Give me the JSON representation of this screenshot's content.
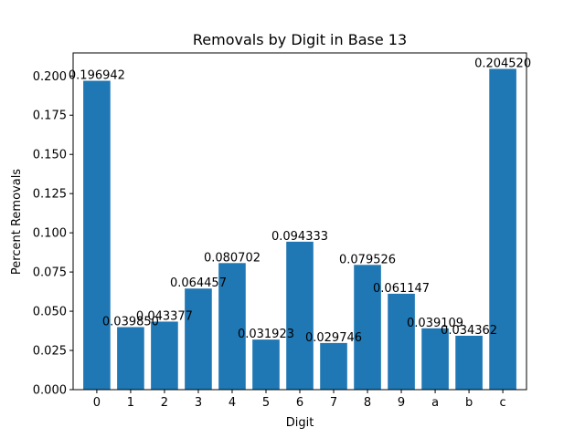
{
  "chart_data": {
    "type": "bar",
    "title": "Removals by Digit in Base 13",
    "xlabel": "Digit",
    "ylabel": "Percent Removals",
    "categories": [
      "0",
      "1",
      "2",
      "3",
      "4",
      "5",
      "6",
      "7",
      "8",
      "9",
      "a",
      "b",
      "c"
    ],
    "values": [
      0.196942,
      0.03985,
      0.043377,
      0.064457,
      0.080702,
      0.031923,
      0.094333,
      0.029746,
      0.079526,
      0.061147,
      0.039109,
      0.034362,
      0.20452
    ],
    "value_labels": [
      "0.196942",
      "0.039850",
      "0.043377",
      "0.064457",
      "0.080702",
      "0.031923",
      "0.094333",
      "0.029746",
      "0.079526",
      "0.061147",
      "0.039109",
      "0.034362",
      "0.204520"
    ],
    "ylim": [
      0,
      0.2147
    ],
    "yticks": [
      0.0,
      0.025,
      0.05,
      0.075,
      0.1,
      0.125,
      0.15,
      0.175,
      0.2
    ],
    "ytick_labels": [
      "0.000",
      "0.025",
      "0.050",
      "0.075",
      "0.100",
      "0.125",
      "0.150",
      "0.175",
      "0.200"
    ],
    "grid": false,
    "bar_color": "#1f77b4"
  }
}
